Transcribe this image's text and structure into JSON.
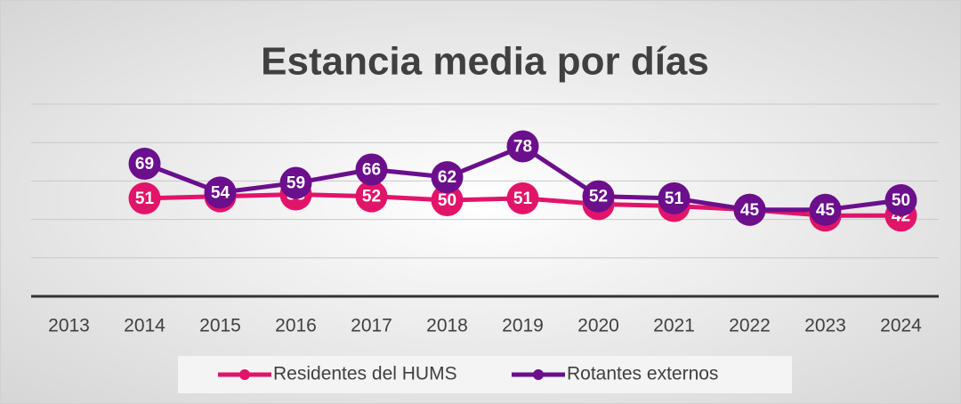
{
  "chart_data": {
    "type": "line",
    "title": "Estancia media por días",
    "categories": [
      "2013",
      "2014",
      "2015",
      "2016",
      "2017",
      "2018",
      "2019",
      "2020",
      "2021",
      "2022",
      "2023",
      "2024"
    ],
    "series": [
      {
        "name": "Residentes del HUMS",
        "color": "#e2146a",
        "values": [
          null,
          51,
          52,
          53,
          52,
          50,
          51,
          48,
          47,
          45,
          42,
          42
        ]
      },
      {
        "name": "Rotantes externos",
        "color": "#6b0f8c",
        "values": [
          null,
          69,
          54,
          59,
          66,
          62,
          78,
          52,
          51,
          45,
          45,
          50
        ]
      }
    ],
    "ylim": [
      0,
      100
    ],
    "yticks": [
      0,
      20,
      40,
      60,
      80,
      100
    ],
    "grid": true,
    "legend": "bottom"
  }
}
